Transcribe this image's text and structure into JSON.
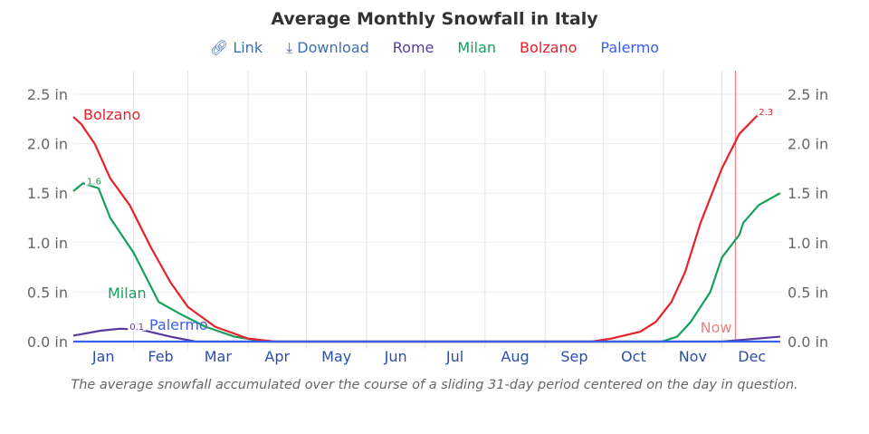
{
  "chart_data": {
    "type": "line",
    "title": "Average Monthly Snowfall in Italy",
    "caption": "The average snowfall accumulated over the course of a sliding 31-day period centered on the day in question.",
    "links": {
      "link": "Link",
      "download": "Download"
    },
    "x_ticks": [
      "Jan",
      "Feb",
      "Mar",
      "Apr",
      "May",
      "Jun",
      "Jul",
      "Aug",
      "Sep",
      "Oct",
      "Nov",
      "Dec"
    ],
    "y_ticks": [
      "0.0 in",
      "0.5 in",
      "1.0 in",
      "1.5 in",
      "2.0 in",
      "2.5 in"
    ],
    "ylim": [
      0,
      2.5
    ],
    "grid": true,
    "legend_position": "top",
    "now_marker": {
      "label": "Now",
      "date": "12-08",
      "color": "#f08080"
    },
    "series": [
      {
        "name": "Rome",
        "color": "#5a3aa0",
        "label_value": "0.1",
        "label_date": "01-30",
        "points": [
          [
            "01-01",
            0.06
          ],
          [
            "01-15",
            0.11
          ],
          [
            "01-25",
            0.13
          ],
          [
            "02-05",
            0.12
          ],
          [
            "02-20",
            0.05
          ],
          [
            "03-05",
            0.0
          ],
          [
            "12-01",
            0.0
          ],
          [
            "12-31",
            0.05
          ]
        ]
      },
      {
        "name": "Milan",
        "color": "#14a05a",
        "label_value": "1.6",
        "label_date": "01-08",
        "points": [
          [
            "01-01",
            1.52
          ],
          [
            "01-06",
            1.6
          ],
          [
            "01-14",
            1.55
          ],
          [
            "01-20",
            1.25
          ],
          [
            "02-01",
            0.9
          ],
          [
            "02-14",
            0.4
          ],
          [
            "02-25",
            0.28
          ],
          [
            "03-10",
            0.15
          ],
          [
            "03-25",
            0.05
          ],
          [
            "04-10",
            0.0
          ],
          [
            "10-31",
            0.0
          ],
          [
            "11-08",
            0.05
          ],
          [
            "11-15",
            0.2
          ],
          [
            "11-25",
            0.5
          ],
          [
            "12-01",
            0.85
          ],
          [
            "12-10",
            1.08
          ],
          [
            "12-12",
            1.2
          ],
          [
            "12-20",
            1.38
          ],
          [
            "12-31",
            1.5
          ]
        ]
      },
      {
        "name": "Bolzano",
        "color": "#e8202a",
        "label_value": "2.3",
        "label_date": "12-20",
        "points": [
          [
            "01-01",
            2.27
          ],
          [
            "01-05",
            2.2
          ],
          [
            "01-12",
            2.0
          ],
          [
            "01-20",
            1.65
          ],
          [
            "01-30",
            1.38
          ],
          [
            "02-10",
            0.95
          ],
          [
            "02-20",
            0.6
          ],
          [
            "03-01",
            0.35
          ],
          [
            "03-15",
            0.15
          ],
          [
            "04-01",
            0.03
          ],
          [
            "04-15",
            0.0
          ],
          [
            "09-25",
            0.0
          ],
          [
            "10-05",
            0.03
          ],
          [
            "10-20",
            0.1
          ],
          [
            "10-28",
            0.2
          ],
          [
            "11-05",
            0.4
          ],
          [
            "11-12",
            0.7
          ],
          [
            "11-20",
            1.2
          ],
          [
            "12-01",
            1.75
          ],
          [
            "12-10",
            2.1
          ],
          [
            "12-20",
            2.3
          ]
        ]
      },
      {
        "name": "Palermo",
        "color": "#3a5ef0",
        "points": [
          [
            "01-01",
            0.0
          ],
          [
            "12-31",
            0.0
          ]
        ]
      }
    ]
  }
}
